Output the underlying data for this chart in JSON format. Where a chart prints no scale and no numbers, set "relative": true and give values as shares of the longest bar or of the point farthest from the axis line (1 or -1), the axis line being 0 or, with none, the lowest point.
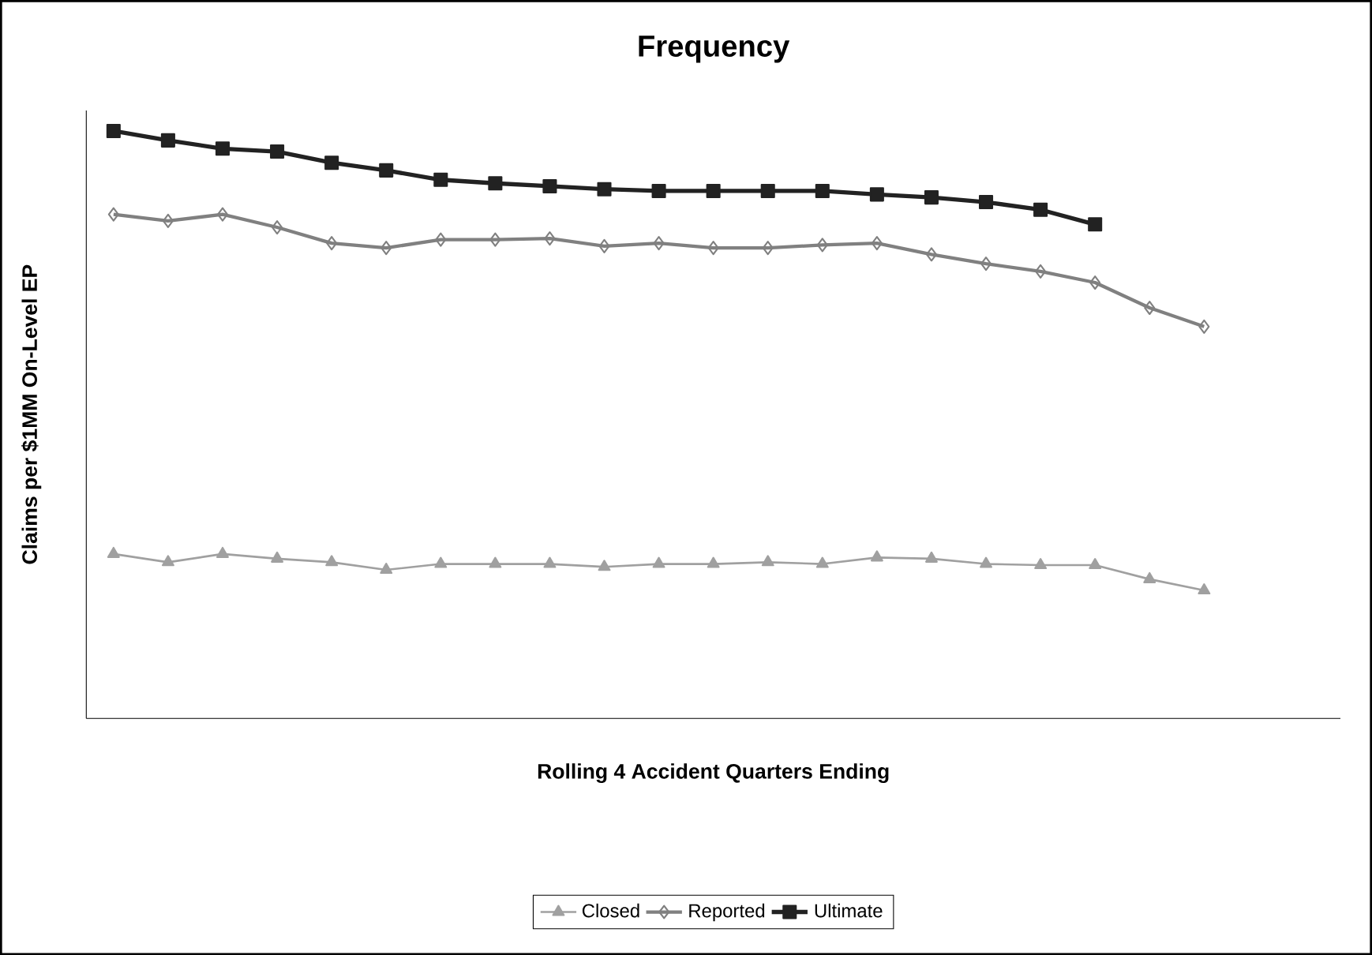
{
  "chart_data": {
    "type": "line",
    "title": "Frequency",
    "xlabel": "Rolling 4 Accident Quarters Ending",
    "ylabel": "Claims per $1MM On-Level EP",
    "relative": true,
    "legend": "bottom",
    "grid": false,
    "categories": [
      null,
      null,
      null,
      null,
      null,
      null,
      null,
      null,
      null,
      null,
      null,
      null,
      null,
      null,
      null,
      null,
      null,
      null,
      null,
      null,
      null,
      null,
      null
    ],
    "series": [
      {
        "name": "Closed",
        "color": "#a0a0a0",
        "marker": "triangle",
        "values": [
          0.28,
          0.266,
          0.28,
          0.272,
          0.266,
          0.253,
          0.263,
          0.263,
          0.263,
          0.258,
          0.263,
          0.263,
          0.266,
          0.263,
          0.274,
          0.272,
          0.263,
          0.261,
          0.261,
          0.237,
          0.218,
          null,
          null
        ]
      },
      {
        "name": "Reported",
        "color": "#808080",
        "marker": "diamond",
        "values": [
          0.858,
          0.847,
          0.858,
          0.836,
          0.809,
          0.801,
          0.815,
          0.815,
          0.817,
          0.804,
          0.809,
          0.801,
          0.801,
          0.806,
          0.809,
          0.79,
          0.774,
          0.761,
          0.742,
          0.699,
          0.667,
          null,
          null
        ]
      },
      {
        "name": "Ultimate",
        "color": "#222222",
        "marker": "square",
        "values": [
          1,
          0.984,
          0.97,
          0.965,
          0.946,
          0.933,
          0.917,
          0.911,
          0.906,
          0.901,
          0.898,
          0.898,
          0.898,
          0.898,
          0.892,
          0.887,
          0.879,
          0.866,
          0.841,
          null,
          null,
          null,
          null
        ]
      }
    ]
  }
}
